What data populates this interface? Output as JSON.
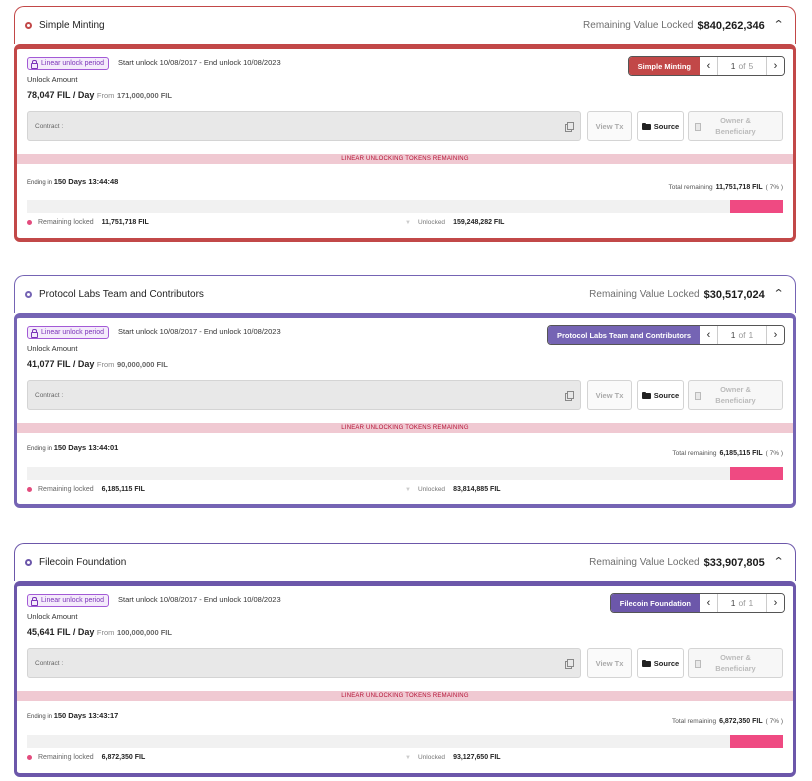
{
  "common": {
    "remaining_label": "Remaining Value Locked",
    "badge_label": "Linear unlock period",
    "unlock_amount_label": "Unlock Amount",
    "per_day": "/ Day",
    "from_label": "From",
    "contract_label": "Contract :",
    "view_tx_label": "View Tx",
    "source_label": "Source",
    "owner_label": "Owner &",
    "beneficiary_label": "Beneficiary",
    "strip_label": "LINEAR UNLOCKING TOKENS REMAINING",
    "ending_label": "Ending in",
    "total_remaining_label": "Total remaining",
    "remaining_locked_label": "Remaining locked",
    "unlocked_label": "Unlocked",
    "of_label": "of",
    "icons": [
      "lock-icon",
      "copy-icon",
      "folder-icon",
      "document-icon",
      "chevron-up-icon",
      "chevron-left-icon",
      "chevron-right-icon"
    ]
  },
  "sections": [
    {
      "title": "Simple Minting",
      "remaining_value": "$840,262,346",
      "accent": "#c24848",
      "dates": "Start unlock 10/08/2017 - End unlock 10/08/2023",
      "rate": "78,047 FIL",
      "from_amount": "171,000,000 FIL",
      "pager_name": "Simple Minting",
      "page_current": "1",
      "page_total": "5",
      "ending": "150 Days 13:44:48",
      "total_remaining": "11,751,718 FIL",
      "pct": "( 7% )",
      "locked_fraction": 0.07,
      "remaining_locked": "11,751,718 FIL",
      "unlocked": "159,248,282 FIL"
    },
    {
      "title": "Protocol Labs Team and Contributors",
      "remaining_value": "$30,517,024",
      "accent": "#7564b4",
      "dates": "Start unlock 10/08/2017 - End unlock 10/08/2023",
      "rate": "41,077 FIL",
      "from_amount": "90,000,000 FIL",
      "pager_name": "Protocol Labs Team and Contributors",
      "page_current": "1",
      "page_total": "1",
      "ending": "150 Days 13:44:01",
      "total_remaining": "6,185,115 FIL",
      "pct": "( 7% )",
      "locked_fraction": 0.07,
      "remaining_locked": "6,185,115 FIL",
      "unlocked": "83,814,885 FIL"
    },
    {
      "title": "Filecoin Foundation",
      "remaining_value": "$33,907,805",
      "accent": "#6c57aa",
      "dates": "Start unlock 10/08/2017 - End unlock 10/08/2023",
      "rate": "45,641 FIL",
      "from_amount": "100,000,000 FIL",
      "pager_name": "Filecoin Foundation",
      "page_current": "1",
      "page_total": "1",
      "ending": "150 Days 13:43:17",
      "total_remaining": "6,872,350 FIL",
      "pct": "( 7% )",
      "locked_fraction": 0.07,
      "remaining_locked": "6,872,350 FIL",
      "unlocked": "93,127,650 FIL"
    }
  ]
}
